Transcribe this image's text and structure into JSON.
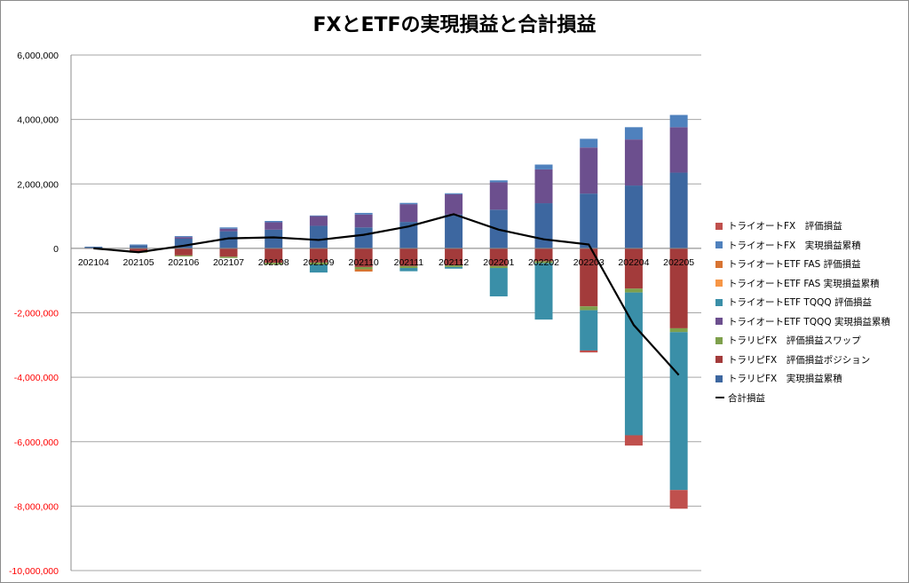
{
  "chart_data": {
    "type": "bar",
    "title": "FXとETFの実現損益と合計損益",
    "categories": [
      "202104",
      "202105",
      "202106",
      "202107",
      "202108",
      "202109",
      "202110",
      "202111",
      "202112",
      "202201",
      "202202",
      "202203",
      "202204",
      "202205"
    ],
    "yticks": [
      "6,000,000",
      "4,000,000",
      "2,000,000",
      "0",
      "-2,000,000",
      "-4,000,000",
      "-6,000,000",
      "-8,000,000",
      "-10,000,000"
    ],
    "ylim": [
      -10000000,
      6000000
    ],
    "grid": true,
    "legend_position": "right",
    "negative_tick_color": "#ff0000",
    "series": [
      {
        "name": "トラリピFX　実現損益累積",
        "color": "#3d67a0",
        "values": [
          50000,
          100000,
          300000,
          530000,
          580000,
          700000,
          650000,
          820000,
          1050000,
          1200000,
          1400000,
          1700000,
          1950000,
          2350000
        ]
      },
      {
        "name": "トラリピFX　評価損益ポジション",
        "color": "#a33b3b",
        "values": [
          -10000,
          -120000,
          -220000,
          -260000,
          -450000,
          -440000,
          -580000,
          -550000,
          -530000,
          -550000,
          -400000,
          -1800000,
          -1250000,
          -2480000
        ]
      },
      {
        "name": "トラリピFX　評価損益スワップ",
        "color": "#7ea04c",
        "values": [
          0,
          -10000,
          -30000,
          -40000,
          -50000,
          -60000,
          -70000,
          -60000,
          -50000,
          -60000,
          -60000,
          -120000,
          -120000,
          -120000
        ]
      },
      {
        "name": "トライオートETF TQQQ 実現損益累積",
        "color": "#6c4f8e",
        "values": [
          0,
          0,
          50000,
          80000,
          230000,
          300000,
          400000,
          550000,
          630000,
          850000,
          1050000,
          1430000,
          1430000,
          1410000
        ]
      },
      {
        "name": "トライオートETF TQQQ 評価損益",
        "color": "#3a8fa8",
        "values": [
          0,
          0,
          0,
          0,
          0,
          -250000,
          0,
          -100000,
          -50000,
          -880000,
          -1750000,
          -1250000,
          -4430000,
          -4900000
        ]
      },
      {
        "name": "トライオートETF FAS 実現損益累積",
        "color": "#f79646",
        "values": [
          0,
          0,
          0,
          0,
          0,
          0,
          0,
          0,
          0,
          0,
          0,
          0,
          0,
          0
        ]
      },
      {
        "name": "トライオートETF FAS 評価損益",
        "color": "#d87432",
        "values": [
          0,
          0,
          0,
          0,
          0,
          0,
          -70000,
          0,
          0,
          0,
          0,
          0,
          0,
          0
        ]
      },
      {
        "name": "トライオートFX　実現損益累積",
        "color": "#4f81bd",
        "values": [
          0,
          20000,
          30000,
          40000,
          40000,
          20000,
          50000,
          40000,
          30000,
          60000,
          150000,
          270000,
          380000,
          380000
        ]
      },
      {
        "name": "トライオートFX　評価損益",
        "color": "#c0504d",
        "values": [
          0,
          0,
          0,
          0,
          0,
          0,
          0,
          0,
          0,
          0,
          0,
          -60000,
          -320000,
          -580000
        ]
      }
    ],
    "line_series": {
      "name": "合計損益",
      "color": "#000000",
      "values": [
        0,
        -120000,
        80000,
        310000,
        340000,
        260000,
        420000,
        680000,
        1060000,
        580000,
        280000,
        120000,
        -2380000,
        -3930000
      ]
    }
  }
}
